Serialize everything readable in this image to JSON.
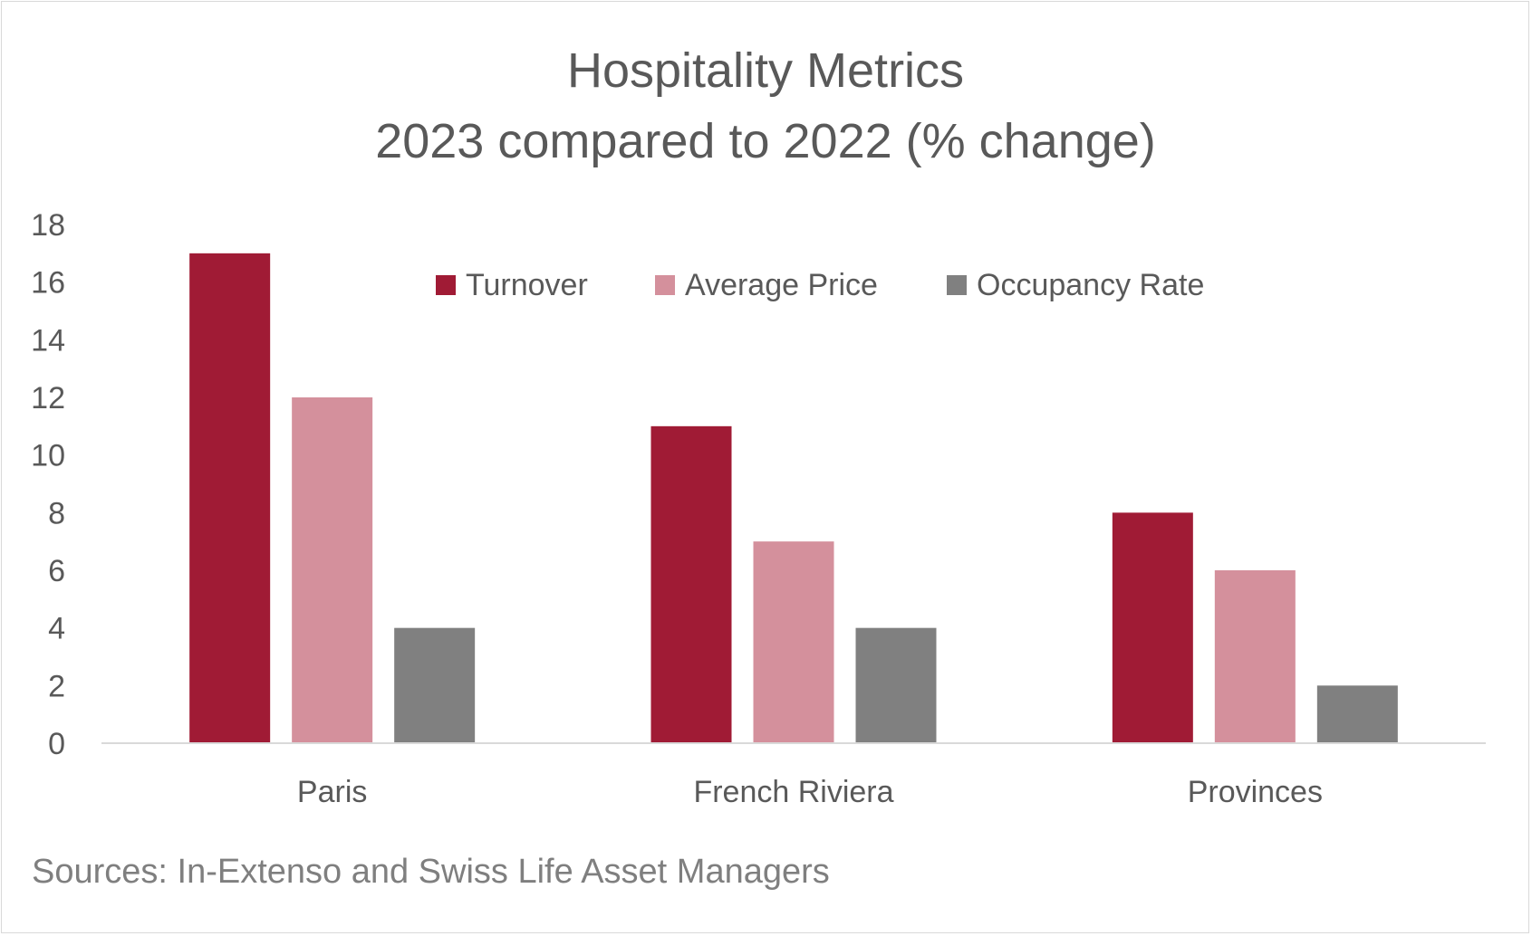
{
  "chart_data": {
    "type": "bar",
    "title": "Hospitality Metrics",
    "subtitle": "2023 compared to 2022 (% change)",
    "categories": [
      "Paris",
      "French Riviera",
      "Provinces"
    ],
    "series": [
      {
        "name": "Turnover",
        "color": "#a01b35",
        "values": [
          17,
          11,
          8
        ]
      },
      {
        "name": "Average Price",
        "color": "#d4909c",
        "values": [
          12,
          7,
          6
        ]
      },
      {
        "name": "Occupancy Rate",
        "color": "#808080",
        "values": [
          4,
          4,
          2
        ]
      }
    ],
    "ylim": [
      0,
      18
    ],
    "yticks": [
      0,
      2,
      4,
      6,
      8,
      10,
      12,
      14,
      16,
      18
    ],
    "xlabel": "",
    "ylabel": "",
    "legend_position": "top-center",
    "grid": false,
    "source": "Sources: In-Extenso and Swiss Life Asset Managers"
  }
}
